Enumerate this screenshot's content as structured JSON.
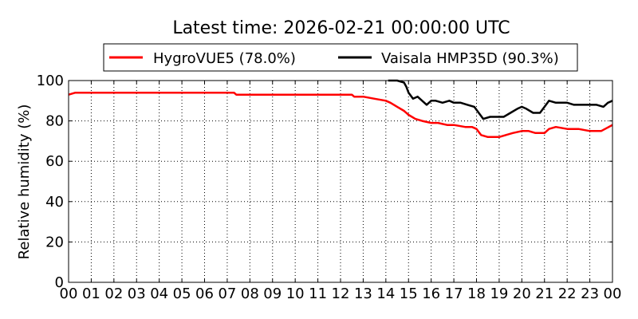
{
  "chart_data": {
    "type": "line",
    "title": "Latest time: 2026-02-21 00:00:00 UTC",
    "xlabel": "",
    "ylabel": "Relative humidity (%)",
    "xlim": [
      0,
      24
    ],
    "ylim": [
      0,
      100
    ],
    "x_tick_labels": [
      "00",
      "01",
      "02",
      "03",
      "04",
      "05",
      "06",
      "07",
      "08",
      "09",
      "10",
      "11",
      "12",
      "13",
      "14",
      "15",
      "16",
      "17",
      "18",
      "19",
      "20",
      "21",
      "22",
      "23",
      "00"
    ],
    "y_ticks": [
      0,
      20,
      40,
      60,
      80,
      100
    ],
    "grid": true,
    "legend_placement": "top",
    "series": [
      {
        "name": "HygroVUE5 (78.0%)",
        "color": "#ff0000",
        "x": [
          0,
          0.3,
          1,
          2,
          3,
          4,
          5,
          6,
          7,
          7.3,
          7.4,
          8,
          9,
          10,
          11,
          12,
          12.5,
          12.6,
          13,
          13.5,
          14,
          14.2,
          14.5,
          14.8,
          15,
          15.3,
          15.6,
          16,
          16.3,
          16.7,
          17,
          17.5,
          17.8,
          18,
          18.2,
          18.5,
          18.8,
          19,
          19.3,
          19.6,
          20,
          20.3,
          20.6,
          21,
          21.2,
          21.5,
          22,
          22.5,
          23,
          23.5,
          24
        ],
        "y": [
          93,
          94,
          94,
          94,
          94,
          94,
          94,
          94,
          94,
          94,
          93,
          93,
          93,
          93,
          93,
          93,
          93,
          92,
          92,
          91,
          90,
          89,
          87,
          85,
          83,
          81,
          80,
          79,
          79,
          78,
          78,
          77,
          77,
          76,
          73,
          72,
          72,
          72,
          73,
          74,
          75,
          75,
          74,
          74,
          76,
          77,
          76,
          76,
          75,
          75,
          78
        ]
      },
      {
        "name": "Vaisala HMP35D (90.3%)",
        "color": "#000000",
        "x": [
          14.1,
          14.5,
          14.8,
          14.9,
          15,
          15.2,
          15.4,
          15.6,
          15.8,
          16,
          16.2,
          16.5,
          16.8,
          17,
          17.3,
          17.6,
          17.9,
          18.1,
          18.3,
          18.6,
          18.9,
          19.2,
          19.5,
          19.8,
          20,
          20.2,
          20.5,
          20.8,
          21,
          21.2,
          21.5,
          22,
          22.3,
          22.6,
          23,
          23.3,
          23.6,
          23.8,
          24
        ],
        "y": [
          100,
          100,
          99,
          97,
          94,
          91,
          92,
          90,
          88,
          90,
          90,
          89,
          90,
          89,
          89,
          88,
          87,
          84,
          81,
          82,
          82,
          82,
          84,
          86,
          87,
          86,
          84,
          84,
          87,
          90,
          89,
          89,
          88,
          88,
          88,
          88,
          87,
          89,
          90
        ]
      }
    ]
  }
}
